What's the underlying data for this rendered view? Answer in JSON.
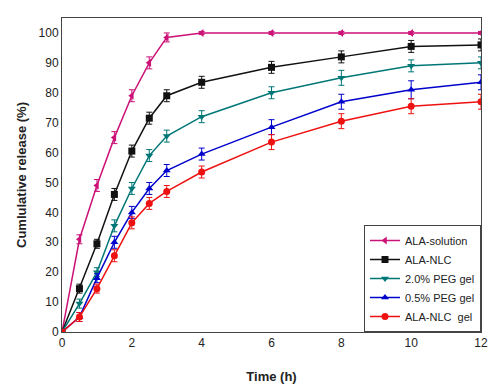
{
  "chart_data": {
    "type": "line",
    "xlabel": "Time (h)",
    "ylabel": "Cumlulative release (%)",
    "x": [
      0,
      0.5,
      1,
      1.5,
      2,
      2.5,
      3,
      4,
      6,
      8,
      10,
      12
    ],
    "series": [
      {
        "name": "ALA-solution",
        "color": "#CC1177",
        "marker": "triangle-left",
        "values": [
          0,
          31,
          49,
          65,
          79,
          90,
          98.5,
          100,
          100,
          100,
          100,
          100
        ],
        "errors": [
          0,
          1.5,
          2,
          2,
          2,
          2,
          1.5,
          0.5,
          0.5,
          0.5,
          0.5,
          0.5
        ]
      },
      {
        "name": "ALA-NLC",
        "color": "#111111",
        "marker": "square",
        "values": [
          0,
          14.5,
          29.5,
          46,
          60.5,
          71.5,
          79,
          83.5,
          88.5,
          92,
          95.5,
          96
        ],
        "errors": [
          0,
          1.5,
          1.5,
          2,
          2,
          2,
          2,
          2,
          2,
          2,
          2,
          2
        ]
      },
      {
        "name": "2.0% PEG gel",
        "color": "#007777",
        "marker": "triangle-down",
        "values": [
          0,
          9.5,
          20,
          35.5,
          48,
          59,
          65.5,
          72,
          80,
          85,
          89,
          90
        ],
        "errors": [
          0,
          1.5,
          1.5,
          2,
          2,
          2,
          2,
          2,
          2,
          2.5,
          2,
          2
        ]
      },
      {
        "name": "0.5% PEG gel",
        "color": "#0000CC",
        "marker": "triangle-up",
        "values": [
          0,
          5,
          18,
          30,
          40,
          48,
          54,
          59.5,
          68.5,
          77,
          81,
          83.5
        ],
        "errors": [
          0,
          1.5,
          1.5,
          2,
          2,
          2,
          2,
          2,
          2.5,
          2.5,
          3,
          2.5
        ]
      },
      {
        "name": "ALA-NLC  gel",
        "color": "#EE1111",
        "marker": "circle",
        "values": [
          0,
          5,
          14.5,
          25.5,
          36.5,
          43,
          47,
          53.5,
          63.5,
          70.5,
          75.5,
          77
        ],
        "errors": [
          0,
          1.5,
          1.5,
          2,
          2,
          2,
          2,
          2,
          2.5,
          2.5,
          2.5,
          2.5
        ]
      }
    ],
    "xlim": [
      0,
      12
    ],
    "ylim": [
      0,
      105
    ],
    "xticks": [
      0,
      2,
      4,
      6,
      8,
      10,
      12
    ],
    "yticks": [
      0,
      10,
      20,
      30,
      40,
      50,
      60,
      70,
      80,
      90,
      100
    ],
    "legend": "lower right",
    "grid": false
  }
}
